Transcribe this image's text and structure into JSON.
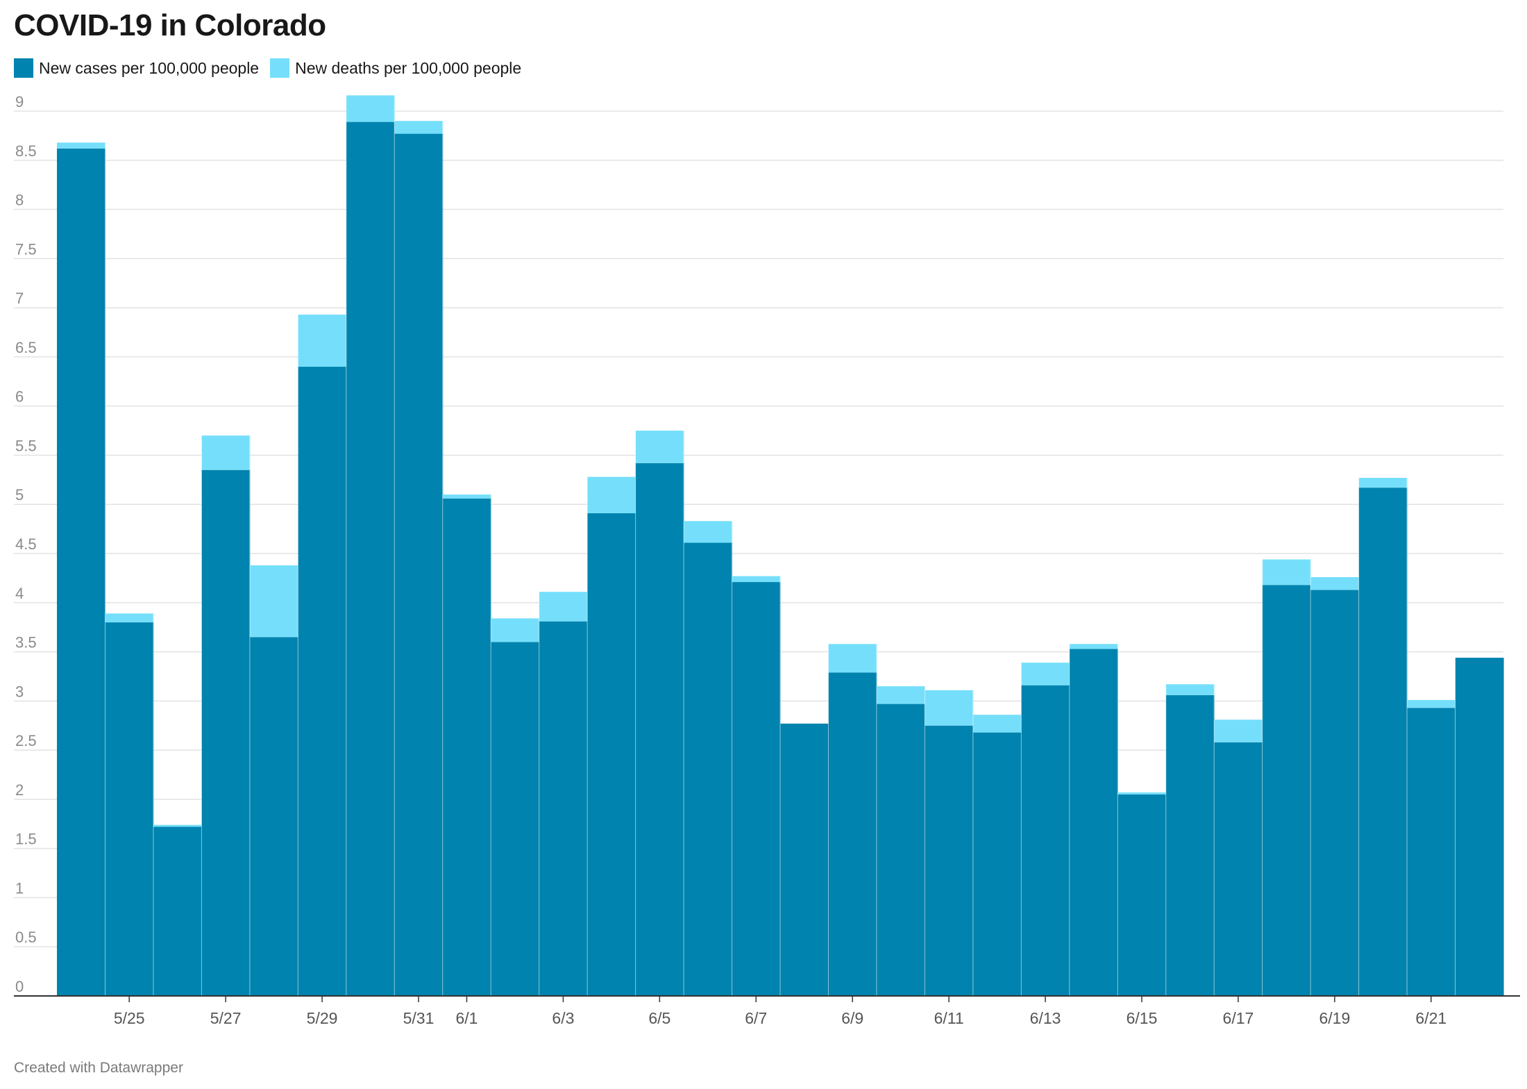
{
  "header": {
    "title": "COVID-19 in Colorado"
  },
  "legend": {
    "items": [
      {
        "label": "New cases per 100,000 people",
        "color": "#0083ae"
      },
      {
        "label": "New deaths per 100,000 people",
        "color": "#75dffb"
      }
    ]
  },
  "footer": {
    "credit": "Created with Datawrapper"
  },
  "chart_data": {
    "type": "area",
    "stacked": true,
    "step": true,
    "title": "COVID-19 in Colorado",
    "xlabel": "",
    "ylabel": "",
    "ylim": [
      0,
      9
    ],
    "y_ticks": [
      0,
      0.5,
      1,
      1.5,
      2,
      2.5,
      3,
      3.5,
      4,
      4.5,
      5,
      5.5,
      6,
      6.5,
      7,
      7.5,
      8,
      8.5,
      9
    ],
    "y_tick_labels": [
      "0",
      "0.5",
      "1",
      "1.5",
      "2",
      "2.5",
      "3",
      "3.5",
      "4",
      "4.5",
      "5",
      "5.5",
      "6",
      "6.5",
      "7",
      "7.5",
      "8",
      "8.5",
      "9"
    ],
    "x_tick_labels": [
      "5/25",
      "5/27",
      "5/29",
      "5/31",
      "6/1",
      "6/3",
      "6/5",
      "6/7",
      "6/9",
      "6/11",
      "6/13",
      "6/15",
      "6/17",
      "6/19",
      "6/21"
    ],
    "x_tick_dates": [
      "2020-05-25",
      "2020-05-27",
      "2020-05-29",
      "2020-05-31",
      "2020-06-01",
      "2020-06-03",
      "2020-06-05",
      "2020-06-07",
      "2020-06-09",
      "2020-06-11",
      "2020-06-13",
      "2020-06-15",
      "2020-06-17",
      "2020-06-19",
      "2020-06-21"
    ],
    "x": [
      "2020-05-24",
      "2020-05-25",
      "2020-05-26",
      "2020-05-27",
      "2020-05-28",
      "2020-05-29",
      "2020-05-30",
      "2020-05-31",
      "2020-06-01",
      "2020-06-02",
      "2020-06-03",
      "2020-06-04",
      "2020-06-05",
      "2020-06-06",
      "2020-06-07",
      "2020-06-08",
      "2020-06-09",
      "2020-06-10",
      "2020-06-11",
      "2020-06-12",
      "2020-06-13",
      "2020-06-14",
      "2020-06-15",
      "2020-06-16",
      "2020-06-17",
      "2020-06-18",
      "2020-06-19",
      "2020-06-20",
      "2020-06-21",
      "2020-06-22"
    ],
    "series": [
      {
        "name": "New cases per 100,000 people",
        "color": "#0083ae",
        "values": [
          8.62,
          3.8,
          1.72,
          5.35,
          3.65,
          6.4,
          8.89,
          8.77,
          5.06,
          3.6,
          3.81,
          4.91,
          5.42,
          4.61,
          4.21,
          2.77,
          3.29,
          2.97,
          2.75,
          2.68,
          3.16,
          3.53,
          2.05,
          3.06,
          2.58,
          4.18,
          4.13,
          5.17,
          2.93,
          3.44
        ]
      },
      {
        "name": "New deaths per 100,000 people",
        "color": "#75dffb",
        "values": [
          0.06,
          0.09,
          0.02,
          0.35,
          0.73,
          0.53,
          0.27,
          0.13,
          0.04,
          0.24,
          0.3,
          0.37,
          0.33,
          0.22,
          0.06,
          0.0,
          0.29,
          0.18,
          0.36,
          0.18,
          0.23,
          0.05,
          0.02,
          0.11,
          0.23,
          0.26,
          0.13,
          0.1,
          0.08,
          0.0
        ]
      }
    ],
    "grid": true,
    "legend_position": "top-left"
  }
}
